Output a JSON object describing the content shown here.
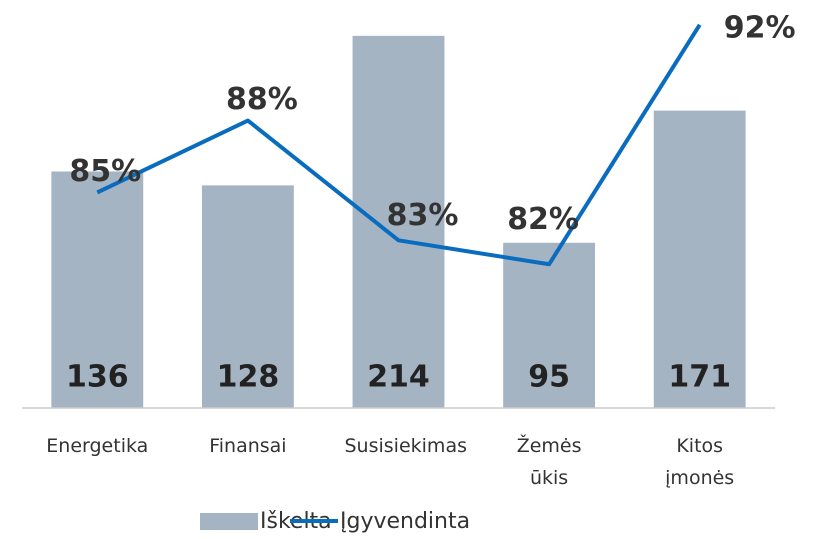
{
  "chart_data": {
    "type": "bar",
    "categories": [
      "Energetika",
      "Finansai",
      "Susisiekimas",
      "Žemės ūkis",
      "Kitos įmonės"
    ],
    "series": [
      {
        "name": "Iškelta",
        "type": "bar",
        "color": "#a5b4c3",
        "values": [
          136,
          128,
          214,
          95,
          171
        ]
      },
      {
        "name": "Įgyvendinta",
        "type": "line",
        "axis": "y2",
        "color": "#0a6cbf",
        "values": [
          85,
          88,
          83,
          82,
          92
        ],
        "value_labels": [
          "85%",
          "88%",
          "83%",
          "82%",
          "92%"
        ]
      }
    ],
    "ylim": [
      0,
      230
    ],
    "y2lim": [
      76,
      92.7
    ],
    "legend": "bottom"
  }
}
